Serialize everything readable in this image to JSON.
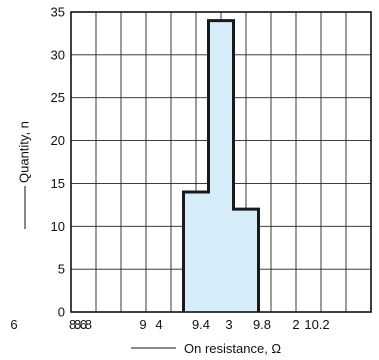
{
  "chart_data": {
    "type": "histogram",
    "xlabel": "On resistance, Ω",
    "ylabel": "Quantity, n",
    "ylim": [
      0,
      35
    ],
    "yticks": [
      0,
      5,
      10,
      15,
      20,
      25,
      30,
      35
    ],
    "xtick_labels": [
      "6",
      "8.6",
      "8.8",
      "9",
      "4",
      "9.4",
      "3",
      "9.8",
      "2",
      "10.2"
    ],
    "bins": [
      {
        "lower": 9.1,
        "upper": 9.3,
        "count": 14
      },
      {
        "lower": 9.3,
        "upper": 9.5,
        "count": 34
      },
      {
        "lower": 9.5,
        "upper": 9.7,
        "count": 12
      }
    ],
    "grid": true,
    "fill_color": "#d6eefa",
    "edge_color": "#1a1a1a",
    "grid_color": "#222222"
  }
}
